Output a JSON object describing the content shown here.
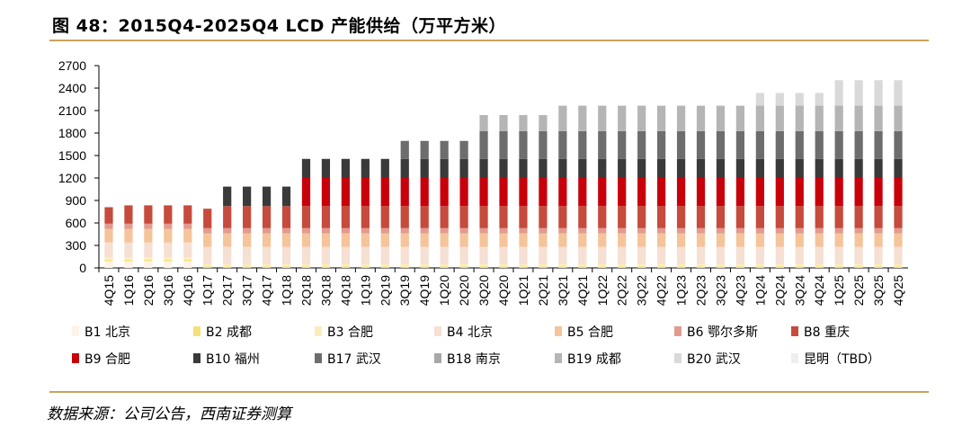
{
  "header": {
    "title": "图 48：2015Q4-2025Q4 LCD 产能供给（万平方米）"
  },
  "footer": {
    "source": "数据来源：公司公告，西南证券测算"
  },
  "chart_data": {
    "type": "bar",
    "stacked": true,
    "title": "2015Q4-2025Q4 LCD 产能供给（万平方米）",
    "xlabel": "",
    "ylabel": "",
    "ylim": [
      0,
      2700
    ],
    "yticks": [
      0,
      300,
      600,
      900,
      1200,
      1500,
      1800,
      2100,
      2400,
      2700
    ],
    "legend_position": "bottom",
    "categories": [
      "4Q15",
      "1Q16",
      "2Q16",
      "3Q16",
      "4Q16",
      "1Q17",
      "2Q17",
      "3Q17",
      "4Q17",
      "1Q18",
      "2Q18",
      "3Q18",
      "4Q18",
      "1Q19",
      "2Q19",
      "3Q19",
      "4Q19",
      "1Q20",
      "2Q20",
      "3Q20",
      "4Q20",
      "1Q21",
      "2Q21",
      "3Q21",
      "4Q21",
      "1Q22",
      "2Q22",
      "3Q22",
      "4Q22",
      "1Q23",
      "2Q23",
      "3Q23",
      "4Q23",
      "1Q24",
      "2Q24",
      "3Q24",
      "4Q24",
      "1Q25",
      "2Q25",
      "3Q25",
      "4Q25"
    ],
    "series": [
      {
        "name": "B1 北京",
        "color": "#fdf3e6",
        "values": [
          90,
          90,
          90,
          90,
          90,
          0,
          0,
          0,
          0,
          0,
          0,
          0,
          0,
          0,
          0,
          0,
          0,
          0,
          0,
          0,
          0,
          0,
          0,
          0,
          0,
          0,
          0,
          0,
          0,
          0,
          0,
          0,
          0,
          0,
          0,
          0,
          0,
          0,
          0,
          0,
          0
        ]
      },
      {
        "name": "B2 成都",
        "color": "#f7e07a",
        "values": [
          20,
          20,
          20,
          20,
          20,
          20,
          20,
          20,
          20,
          20,
          20,
          20,
          20,
          20,
          20,
          20,
          20,
          20,
          20,
          20,
          20,
          20,
          20,
          20,
          20,
          20,
          20,
          20,
          20,
          20,
          20,
          20,
          20,
          20,
          20,
          20,
          20,
          20,
          20,
          20,
          20
        ]
      },
      {
        "name": "B3 合肥",
        "color": "#fbeebb",
        "values": [
          30,
          30,
          30,
          30,
          30,
          30,
          30,
          30,
          30,
          30,
          30,
          30,
          30,
          30,
          30,
          30,
          30,
          30,
          30,
          30,
          30,
          30,
          30,
          30,
          30,
          30,
          30,
          30,
          30,
          30,
          30,
          30,
          30,
          30,
          30,
          30,
          30,
          30,
          30,
          30,
          30
        ]
      },
      {
        "name": "B4 北京",
        "color": "#f6dfd3",
        "values": [
          200,
          200,
          200,
          200,
          200,
          230,
          230,
          230,
          230,
          230,
          230,
          230,
          230,
          230,
          230,
          230,
          230,
          230,
          230,
          230,
          230,
          230,
          230,
          230,
          230,
          230,
          230,
          230,
          230,
          230,
          230,
          230,
          230,
          230,
          230,
          230,
          230,
          230,
          230,
          230,
          230
        ]
      },
      {
        "name": "B5 合肥",
        "color": "#f5c49a",
        "values": [
          180,
          180,
          180,
          180,
          180,
          180,
          180,
          180,
          180,
          180,
          180,
          180,
          180,
          180,
          180,
          180,
          180,
          180,
          180,
          180,
          180,
          180,
          180,
          180,
          180,
          180,
          180,
          180,
          180,
          180,
          180,
          180,
          180,
          180,
          180,
          180,
          180,
          180,
          180,
          180,
          180
        ]
      },
      {
        "name": "B6 鄂尔多斯",
        "color": "#e39b8f",
        "values": [
          70,
          70,
          70,
          70,
          70,
          70,
          70,
          70,
          70,
          70,
          70,
          70,
          70,
          70,
          70,
          70,
          70,
          70,
          70,
          70,
          70,
          70,
          70,
          70,
          70,
          70,
          70,
          70,
          70,
          70,
          70,
          70,
          70,
          70,
          70,
          70,
          70,
          70,
          70,
          70,
          70
        ]
      },
      {
        "name": "B8 重庆",
        "color": "#c64b3c",
        "values": [
          220,
          245,
          245,
          245,
          245,
          260,
          295,
          295,
          295,
          295,
          295,
          295,
          295,
          295,
          295,
          295,
          295,
          295,
          295,
          295,
          295,
          295,
          295,
          295,
          295,
          295,
          295,
          295,
          295,
          295,
          295,
          295,
          295,
          295,
          295,
          295,
          295,
          295,
          295,
          295,
          295
        ]
      },
      {
        "name": "B9 合肥",
        "color": "#c8000a",
        "values": [
          0,
          0,
          0,
          0,
          0,
          0,
          0,
          0,
          0,
          0,
          375,
          375,
          375,
          375,
          375,
          375,
          375,
          375,
          375,
          375,
          375,
          375,
          375,
          375,
          375,
          375,
          375,
          375,
          375,
          375,
          375,
          375,
          375,
          375,
          375,
          375,
          375,
          375,
          375,
          375,
          375
        ]
      },
      {
        "name": "B10 福州",
        "color": "#3a3a3a",
        "values": [
          0,
          0,
          0,
          0,
          0,
          0,
          260,
          260,
          260,
          260,
          255,
          255,
          255,
          255,
          255,
          255,
          255,
          255,
          255,
          255,
          255,
          255,
          255,
          255,
          255,
          255,
          255,
          255,
          255,
          255,
          255,
          255,
          255,
          255,
          255,
          255,
          255,
          255,
          255,
          255,
          255
        ]
      },
      {
        "name": "B17 武汉",
        "color": "#6d6d6d",
        "values": [
          0,
          0,
          0,
          0,
          0,
          0,
          0,
          0,
          0,
          0,
          0,
          0,
          0,
          0,
          0,
          240,
          240,
          240,
          240,
          370,
          370,
          370,
          370,
          370,
          370,
          370,
          370,
          370,
          370,
          370,
          370,
          370,
          370,
          370,
          370,
          370,
          370,
          370,
          370,
          370,
          370
        ]
      },
      {
        "name": "B18 南京",
        "color": "#a8a8a8",
        "values": [
          0,
          0,
          0,
          0,
          0,
          0,
          0,
          0,
          0,
          0,
          0,
          0,
          0,
          0,
          0,
          0,
          0,
          0,
          0,
          0,
          0,
          0,
          0,
          0,
          0,
          0,
          0,
          0,
          0,
          0,
          0,
          0,
          0,
          0,
          0,
          0,
          0,
          0,
          0,
          0,
          0
        ]
      },
      {
        "name": "B19 成都",
        "color": "#b5b5b5",
        "values": [
          0,
          0,
          0,
          0,
          0,
          0,
          0,
          0,
          0,
          0,
          0,
          0,
          0,
          0,
          0,
          0,
          0,
          0,
          0,
          215,
          215,
          215,
          215,
          340,
          340,
          340,
          340,
          340,
          340,
          340,
          340,
          340,
          340,
          340,
          340,
          340,
          340,
          340,
          340,
          340,
          340
        ]
      },
      {
        "name": "B20 武汉",
        "color": "#d9d9d9",
        "values": [
          0,
          0,
          0,
          0,
          0,
          0,
          0,
          0,
          0,
          0,
          0,
          0,
          0,
          0,
          0,
          0,
          0,
          0,
          0,
          0,
          0,
          0,
          0,
          0,
          0,
          0,
          0,
          0,
          0,
          0,
          0,
          0,
          0,
          170,
          170,
          170,
          170,
          340,
          340,
          340,
          340
        ]
      },
      {
        "name": "昆明（TBD）",
        "color": "#eeeeee",
        "values": [
          0,
          0,
          0,
          0,
          0,
          0,
          0,
          0,
          0,
          0,
          0,
          0,
          0,
          0,
          0,
          0,
          0,
          0,
          0,
          0,
          0,
          0,
          0,
          0,
          0,
          0,
          0,
          0,
          0,
          0,
          0,
          0,
          0,
          0,
          0,
          0,
          0,
          0,
          0,
          0,
          0
        ]
      }
    ]
  }
}
